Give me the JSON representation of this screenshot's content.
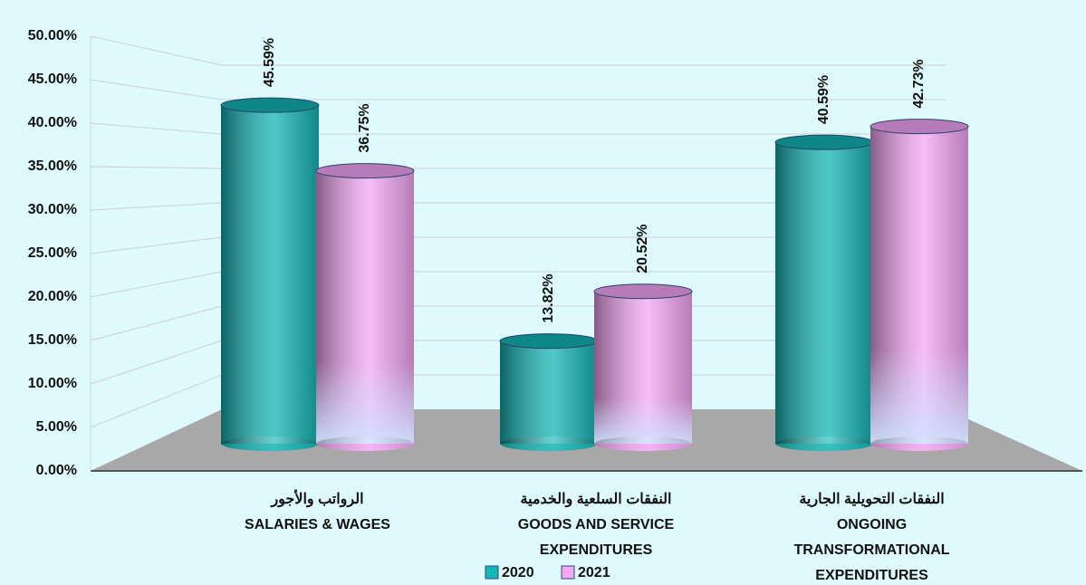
{
  "chart_data": {
    "type": "bar",
    "categories": [
      [
        "الرواتب والأجور",
        "SALARIES & WAGES"
      ],
      [
        "النفقات السلعية والخدمية",
        "GOODS AND SERVICE",
        "EXPENDITURES"
      ],
      [
        "النفقات التحويلية الجارية",
        "ONGOING",
        "TRANSFORMATIONAL",
        "EXPENDITURES"
      ]
    ],
    "series": [
      {
        "name": "2020",
        "color": "#15b5b5",
        "values": [
          45.59,
          13.82,
          40.59
        ],
        "value_labels": [
          "45.59%",
          "13.82%",
          "40.59%"
        ]
      },
      {
        "name": "2021",
        "color": "#f4a6f4",
        "values": [
          36.75,
          20.52,
          42.73
        ],
        "value_labels": [
          "36.75%",
          "20.52%",
          "42.73%"
        ]
      }
    ],
    "ylim": [
      0,
      50
    ],
    "yticks": [
      {
        "value": 0,
        "label": "0.00%"
      },
      {
        "value": 5,
        "label": "5.00%"
      },
      {
        "value": 10,
        "label": "10.00%"
      },
      {
        "value": 15,
        "label": "15.00%"
      },
      {
        "value": 20,
        "label": "20.00%"
      },
      {
        "value": 25,
        "label": "25.00%"
      },
      {
        "value": 30,
        "label": "30.00%"
      },
      {
        "value": 35,
        "label": "35.00%"
      },
      {
        "value": 40,
        "label": "40.00%"
      },
      {
        "value": 45,
        "label": "45.00%"
      },
      {
        "value": 50,
        "label": "50.00%"
      }
    ],
    "grid": true,
    "legend": "bottom"
  }
}
